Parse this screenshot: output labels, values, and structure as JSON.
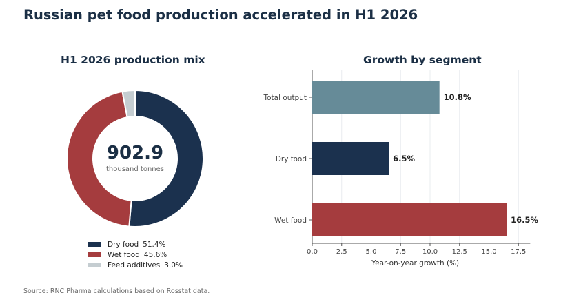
{
  "title": "Russian pet food production accelerated in H1 2026",
  "source": "Source: RNC Pharma calculations based on Rosstat data.",
  "chart_data": [
    {
      "type": "pie",
      "title": "H1 2026 production mix",
      "center_value": "902.9",
      "center_label": "thousand tonnes",
      "slices": [
        {
          "label": "Dry food",
          "value": 51.4,
          "value_label": "51.4%",
          "color": "#1b314e"
        },
        {
          "label": "Wet food",
          "value": 45.6,
          "value_label": "45.6%",
          "color": "#a53c3e"
        },
        {
          "label": "Feed additives",
          "value": 3.0,
          "value_label": "3.0%",
          "color": "#c5cdd1"
        }
      ],
      "legend_position": "bottom"
    },
    {
      "type": "bar",
      "orientation": "horizontal",
      "title": "Growth by segment",
      "categories": [
        "Total output",
        "Dry food",
        "Wet food"
      ],
      "values": [
        10.8,
        6.5,
        16.5
      ],
      "value_labels": [
        "10.8%",
        "6.5%",
        "16.5%"
      ],
      "colors": [
        "#668b98",
        "#1b314e",
        "#a53c3e"
      ],
      "xlabel": "Year-on-year growth (%)",
      "xlim": [
        0,
        18.5
      ],
      "xticks": [
        "0.0",
        "2.5",
        "5.0",
        "7.5",
        "10.0",
        "12.5",
        "15.0",
        "17.5"
      ],
      "grid": "vertical"
    }
  ]
}
